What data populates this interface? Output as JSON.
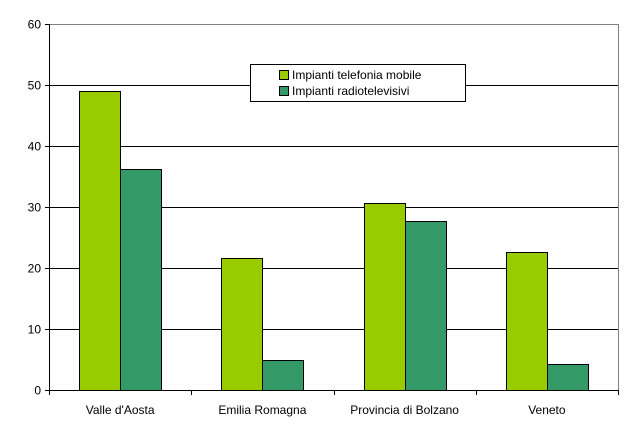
{
  "chart_data": {
    "type": "bar",
    "title": "",
    "xlabel": "",
    "ylabel": "",
    "categories": [
      "Valle d'Aosta",
      "Emilia Romagna",
      "Provincia di Bolzano",
      "Veneto"
    ],
    "series": [
      {
        "name": "Impianti telefonia mobile",
        "color": "#99CC00",
        "values": [
          49.0,
          21.6,
          30.6,
          22.6
        ]
      },
      {
        "name": "Impianti radiotelevisivi",
        "color": "#339966",
        "values": [
          36.2,
          4.9,
          27.7,
          4.3
        ]
      }
    ],
    "ylim": [
      0,
      60
    ],
    "yticks": [
      0,
      10,
      20,
      30,
      40,
      50,
      60
    ],
    "grid": true,
    "legend_position": "top-center-inside"
  },
  "legend": {
    "items": [
      {
        "label": "Impianti telefonia mobile",
        "color": "#99CC00"
      },
      {
        "label": "Impianti radiotelevisivi",
        "color": "#339966"
      }
    ]
  }
}
